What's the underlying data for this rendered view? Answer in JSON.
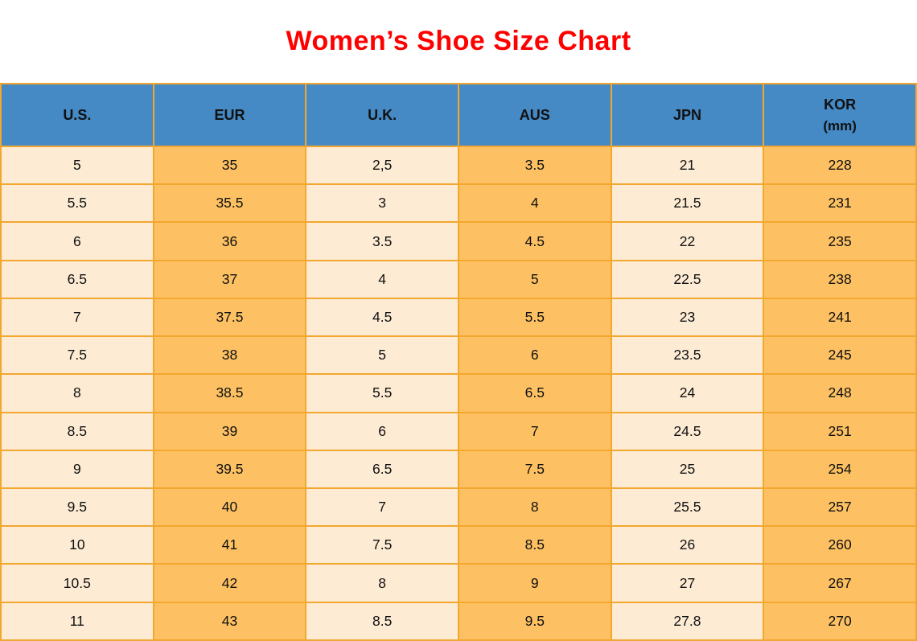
{
  "page": {
    "title": "Women’s Shoe Size Chart"
  },
  "colors": {
    "title_red": "#FF0000",
    "header_blue": "#4589C5",
    "cell_cream": "#FDEBD3",
    "cell_orange": "#FDC163",
    "border_orange": "#F2A72E",
    "text_black": "#111111",
    "background_white": "#FFFFFF"
  },
  "table": {
    "columns": [
      {
        "key": "us",
        "line1": "U.S.",
        "line2": ""
      },
      {
        "key": "eur",
        "line1": "EUR",
        "line2": ""
      },
      {
        "key": "uk",
        "line1": "U.K.",
        "line2": ""
      },
      {
        "key": "aus",
        "line1": "AUS",
        "line2": ""
      },
      {
        "key": "jpn",
        "line1": "JPN",
        "line2": ""
      },
      {
        "key": "kor",
        "line1": "KOR",
        "line2": "(mm)"
      }
    ]
  },
  "chart_data": {
    "type": "table",
    "title": "Women’s Shoe Size Chart",
    "columns": [
      "U.S.",
      "EUR",
      "U.K.",
      "AUS",
      "JPN",
      "KOR (mm)"
    ],
    "rows": [
      [
        "5",
        "35",
        "2,5",
        "3.5",
        "21",
        "228"
      ],
      [
        "5.5",
        "35.5",
        "3",
        "4",
        "21.5",
        "231"
      ],
      [
        "6",
        "36",
        "3.5",
        "4.5",
        "22",
        "235"
      ],
      [
        "6.5",
        "37",
        "4",
        "5",
        "22.5",
        "238"
      ],
      [
        "7",
        "37.5",
        "4.5",
        "5.5",
        "23",
        "241"
      ],
      [
        "7.5",
        "38",
        "5",
        "6",
        "23.5",
        "245"
      ],
      [
        "8",
        "38.5",
        "5.5",
        "6.5",
        "24",
        "248"
      ],
      [
        "8.5",
        "39",
        "6",
        "7",
        "24.5",
        "251"
      ],
      [
        "9",
        "39.5",
        "6.5",
        "7.5",
        "25",
        "254"
      ],
      [
        "9.5",
        "40",
        "7",
        "8",
        "25.5",
        "257"
      ],
      [
        "10",
        "41",
        "7.5",
        "8.5",
        "26",
        "260"
      ],
      [
        "10.5",
        "42",
        "8",
        "9",
        "27",
        "267"
      ],
      [
        "11",
        "43",
        "8.5",
        "9.5",
        "27.8",
        "270"
      ]
    ]
  }
}
